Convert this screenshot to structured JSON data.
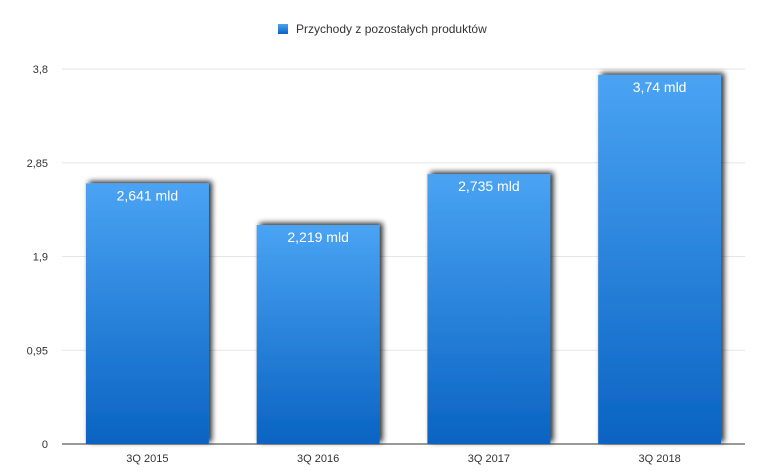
{
  "chart_data": {
    "type": "bar",
    "categories": [
      "3Q 2015",
      "3Q 2016",
      "3Q 2017",
      "3Q 2018"
    ],
    "series": [
      {
        "name": "Przychody z pozostałych produktów",
        "values": [
          2.641,
          2.219,
          2.735,
          3.74
        ]
      }
    ],
    "data_labels": [
      "2,641 mld",
      "2,219 mld",
      "2,735 mld",
      "3,74 mld"
    ],
    "yticks": [
      0,
      0.95,
      1.9,
      2.85,
      3.8
    ],
    "ytick_labels": [
      "0",
      "0,95",
      "1,9",
      "2,85",
      "3,8"
    ],
    "ylim": [
      0,
      3.8
    ],
    "grid": true,
    "legend_position": "top-center",
    "colors": {
      "bar_top": "#4aa3f3",
      "bar_bottom": "#0a63c2",
      "grid": "#e6e6e6",
      "axis": "#333333"
    }
  }
}
